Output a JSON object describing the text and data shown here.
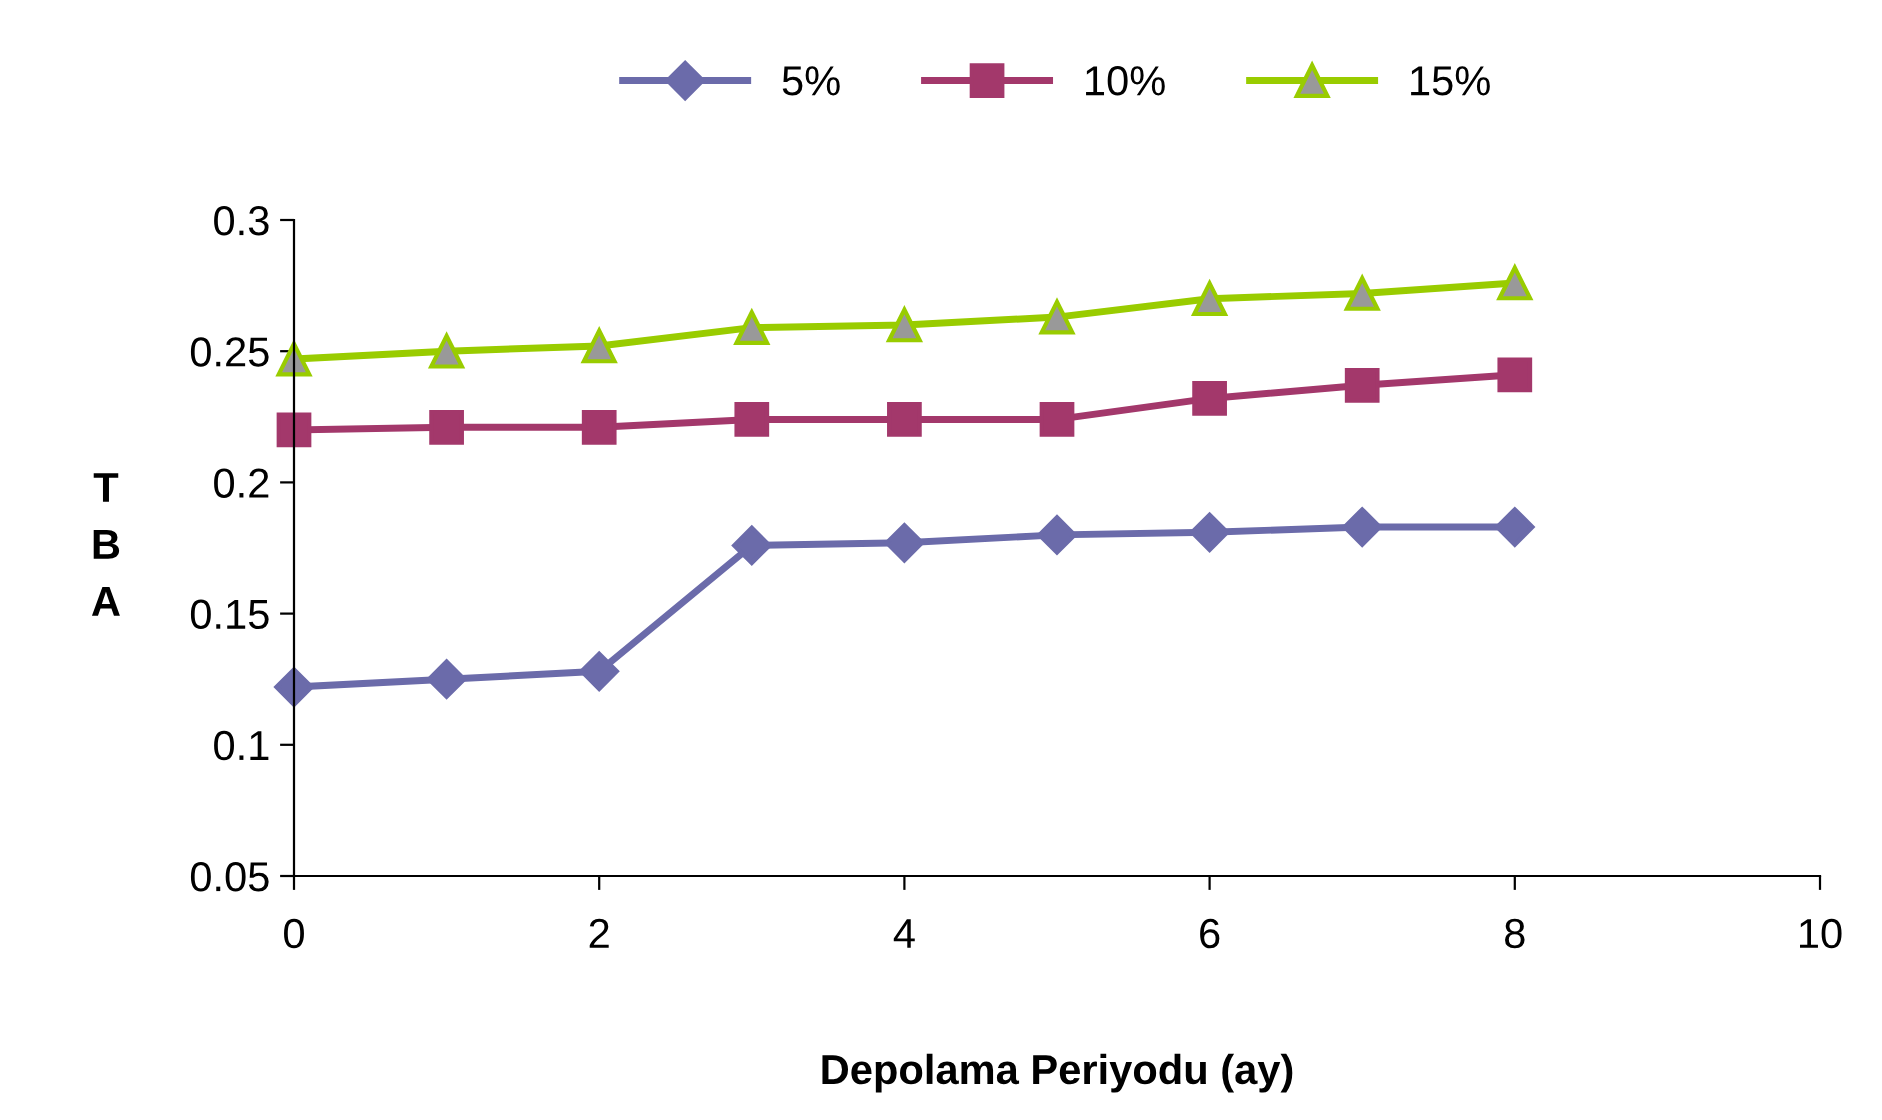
{
  "chart_data": {
    "type": "line",
    "xlabel": "Depolama Periyodu (ay)",
    "ylabel": "TBA",
    "x": [
      0,
      1,
      2,
      3,
      4,
      5,
      6,
      7,
      8
    ],
    "series": [
      {
        "name": "5%",
        "color": "#6b6baa",
        "marker": "diamond",
        "values": [
          0.122,
          0.125,
          0.128,
          0.176,
          0.177,
          0.18,
          0.181,
          0.183,
          0.183
        ]
      },
      {
        "name": "10%",
        "color": "#a3386b",
        "marker": "square",
        "values": [
          0.22,
          0.221,
          0.221,
          0.224,
          0.224,
          0.224,
          0.232,
          0.237,
          0.241
        ]
      },
      {
        "name": "15%",
        "color": "#99cc00",
        "marker": "triangle",
        "values": [
          0.247,
          0.25,
          0.252,
          0.259,
          0.26,
          0.263,
          0.27,
          0.272,
          0.276
        ]
      }
    ],
    "xlim": [
      0,
      10
    ],
    "xticks": [
      0,
      2,
      4,
      6,
      8,
      10
    ],
    "ylim": [
      0.05,
      0.3
    ],
    "yticks": [
      0.05,
      0.1,
      0.15,
      0.2,
      0.25,
      0.3
    ],
    "grid": false,
    "legend": "top"
  }
}
